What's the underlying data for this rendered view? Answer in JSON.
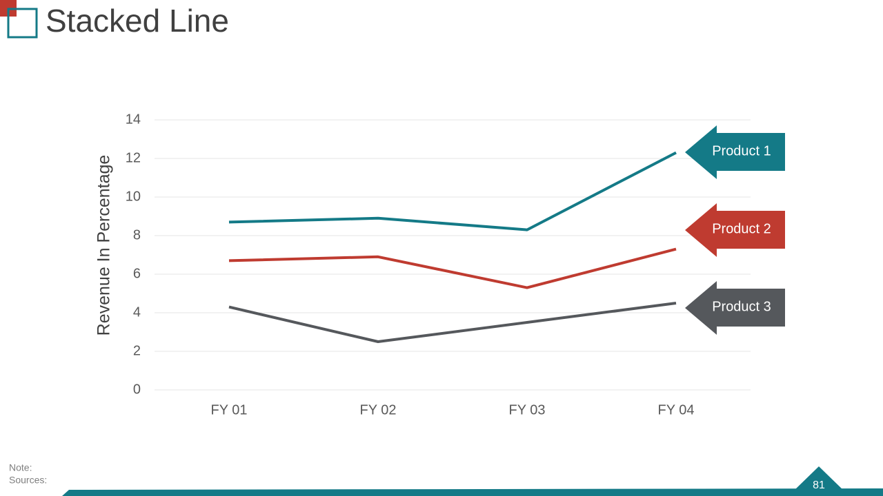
{
  "chart_data": {
    "type": "line",
    "stacked": true,
    "title": "Stacked Line",
    "y_label": "Revenue In Percentage",
    "categories": [
      "FY 01",
      "FY 02",
      "FY 03",
      "FY 04"
    ],
    "series": [
      {
        "name": "Product 3",
        "color": "#55585c",
        "values": [
          4.3,
          2.5,
          3.5,
          4.5
        ]
      },
      {
        "name": "Product 2",
        "color": "#bf3b30",
        "values": [
          2.4,
          4.4,
          1.8,
          2.8
        ]
      },
      {
        "name": "Product 1",
        "color": "#147a87",
        "values": [
          2.0,
          2.0,
          3.0,
          5.0
        ]
      }
    ],
    "ylim": [
      0,
      14
    ],
    "yticks": [
      0,
      2,
      4,
      6,
      8,
      10,
      12,
      14
    ],
    "grid": true
  },
  "footer": {
    "note": "Note:",
    "sources": "Sources:",
    "page_number": 81
  }
}
